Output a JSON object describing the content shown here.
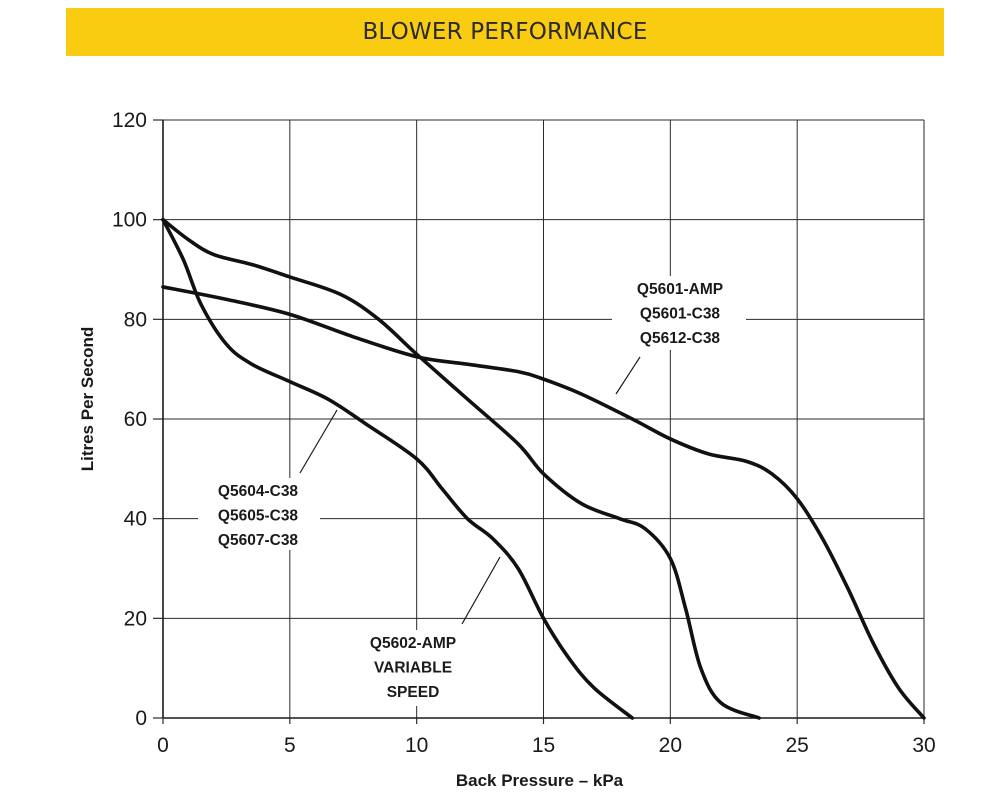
{
  "header": {
    "title": "BLOWER PERFORMANCE",
    "color": "#f9cc12"
  },
  "chart_data": {
    "type": "line",
    "title": "BLOWER PERFORMANCE",
    "xlabel": "Back Pressure – kPa",
    "ylabel": "Litres Per Second",
    "xlim": [
      0,
      30
    ],
    "ylim": [
      0,
      120
    ],
    "xticks": [
      0,
      5,
      10,
      15,
      20,
      25,
      30
    ],
    "yticks": [
      0,
      20,
      40,
      60,
      80,
      100,
      120
    ],
    "grid": true,
    "series": [
      {
        "name": "Q5602-AMP VARIABLE SPEED",
        "labels": [
          "Q5602-AMP",
          "VARIABLE",
          "SPEED"
        ],
        "points": [
          [
            0,
            100
          ],
          [
            0.8,
            92
          ],
          [
            1.5,
            83
          ],
          [
            2.5,
            75
          ],
          [
            3.5,
            71
          ],
          [
            5,
            67.5
          ],
          [
            6.5,
            64
          ],
          [
            8,
            59
          ],
          [
            10,
            52
          ],
          [
            11,
            46
          ],
          [
            12,
            40
          ],
          [
            13,
            36
          ],
          [
            14,
            30
          ],
          [
            15,
            20
          ],
          [
            16,
            12
          ],
          [
            17,
            6
          ],
          [
            18.5,
            0
          ]
        ]
      },
      {
        "name": "Q5604-C38 Q5605-C38 Q5607-C38",
        "labels": [
          "Q5604-C38",
          "Q5605-C38",
          "Q5607-C38"
        ],
        "points": [
          [
            0,
            100
          ],
          [
            1,
            96
          ],
          [
            2,
            93
          ],
          [
            3.5,
            91
          ],
          [
            5,
            88.5
          ],
          [
            7,
            85
          ],
          [
            8.5,
            80
          ],
          [
            10,
            73
          ],
          [
            12,
            64
          ],
          [
            14,
            55
          ],
          [
            15,
            49
          ],
          [
            16.5,
            43
          ],
          [
            18,
            40
          ],
          [
            19,
            38
          ],
          [
            20,
            32
          ],
          [
            20.6,
            22
          ],
          [
            21.2,
            10
          ],
          [
            22,
            3
          ],
          [
            23.5,
            0
          ]
        ]
      },
      {
        "name": "Q5601-AMP Q5601-C38 Q5612-C38",
        "labels": [
          "Q5601-AMP",
          "Q5601-C38",
          "Q5612-C38"
        ],
        "points": [
          [
            0,
            86.5
          ],
          [
            2.5,
            84
          ],
          [
            5,
            81
          ],
          [
            7.5,
            76.5
          ],
          [
            10,
            72.5
          ],
          [
            12,
            71
          ],
          [
            14,
            69.5
          ],
          [
            15,
            68
          ],
          [
            16.5,
            65
          ],
          [
            18.5,
            60
          ],
          [
            20,
            56
          ],
          [
            21.5,
            53
          ],
          [
            23,
            51.5
          ],
          [
            24,
            49
          ],
          [
            25,
            44
          ],
          [
            26,
            36
          ],
          [
            27,
            26
          ],
          [
            28,
            15
          ],
          [
            29,
            6
          ],
          [
            30,
            0
          ]
        ]
      }
    ]
  }
}
